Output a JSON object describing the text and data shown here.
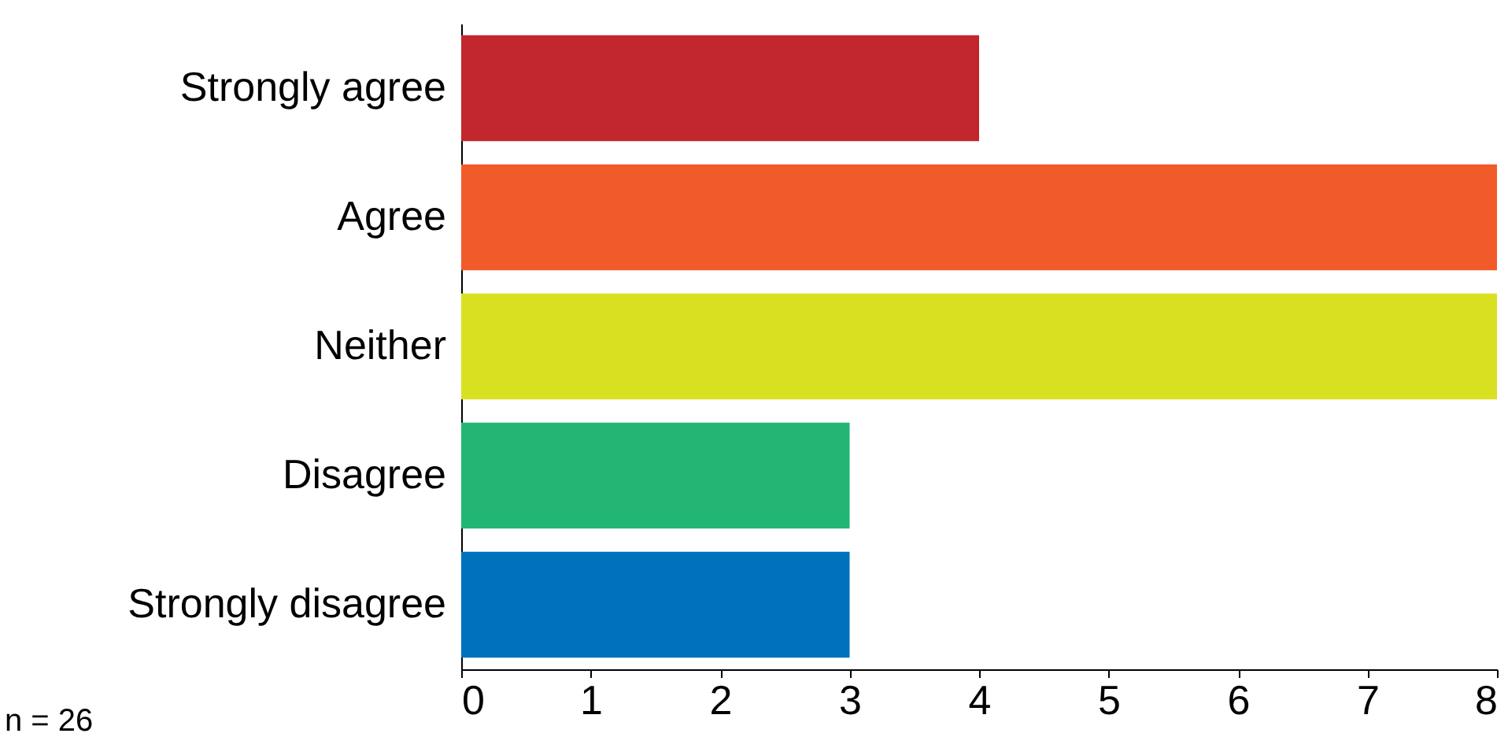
{
  "chart_data": {
    "type": "bar",
    "orientation": "horizontal",
    "categories": [
      "Strongly agree",
      "Agree",
      "Neither",
      "Disagree",
      "Strongly disagree"
    ],
    "values": [
      4,
      8,
      8,
      3,
      3
    ],
    "colors": [
      "#c1272d",
      "#f15a29",
      "#d9e021",
      "#22b573",
      "#0071bc"
    ],
    "xlim": [
      0,
      8
    ],
    "xticks": [
      0,
      1,
      2,
      3,
      4,
      5,
      6,
      7,
      8
    ],
    "grid": false,
    "annotations": [
      "n = 26"
    ]
  }
}
